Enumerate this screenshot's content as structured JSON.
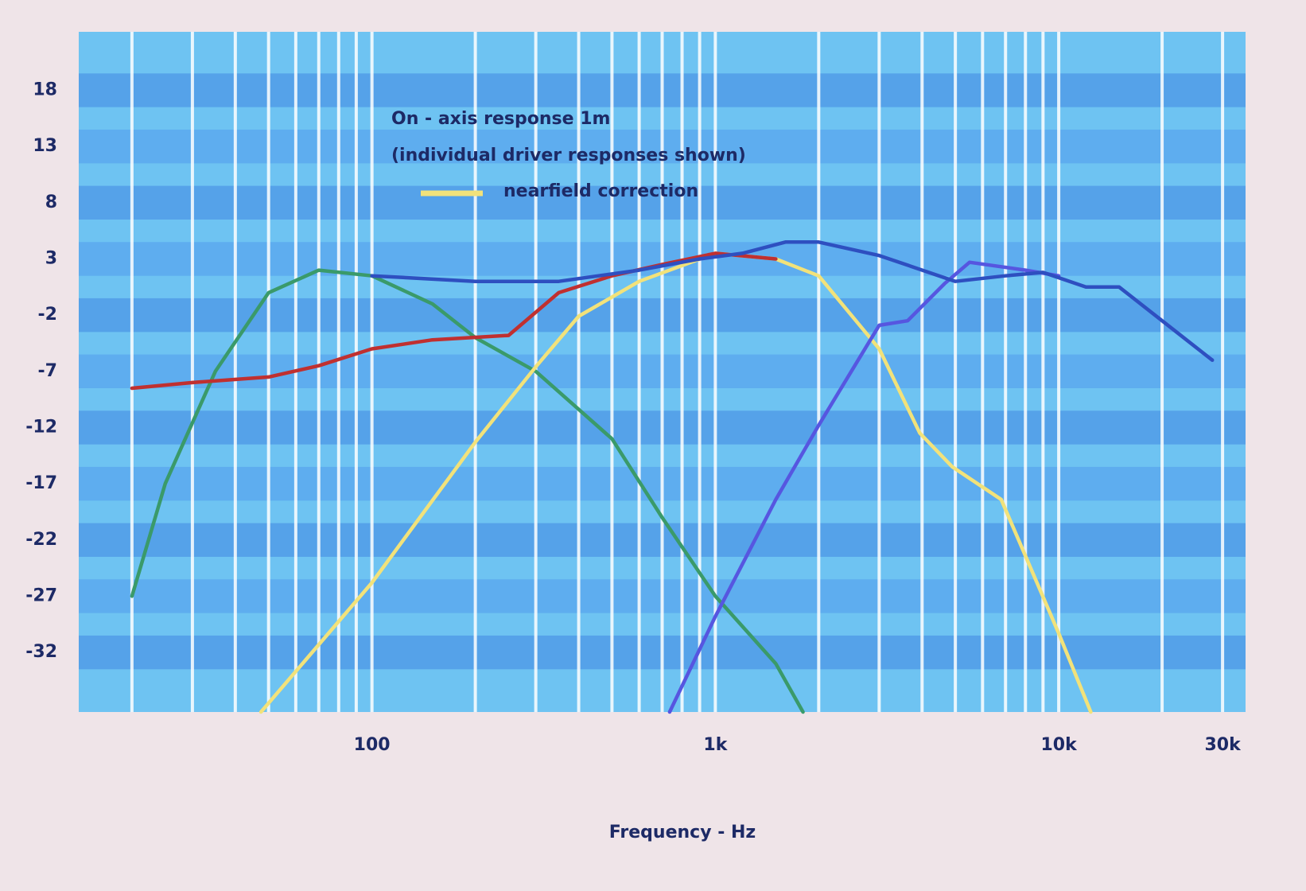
{
  "chart_data": {
    "type": "line",
    "annotations": [
      "On - axis response 1m",
      "(individual driver responses shown)"
    ],
    "x_label": "Frequency - Hz",
    "log_x": true,
    "xlim": [
      14,
      35000
    ],
    "ylim": [
      -37.3,
      23.2
    ],
    "xticks": [
      100,
      {
        "value": 1000,
        "label": "1k"
      },
      {
        "value": 10000,
        "label": "10k"
      },
      {
        "value": 30000,
        "label": "30k"
      }
    ],
    "xgrid": [
      20,
      30,
      40,
      50,
      60,
      70,
      80,
      90,
      100,
      200,
      300,
      400,
      500,
      600,
      700,
      800,
      900,
      1000,
      2000,
      3000,
      4000,
      5000,
      6000,
      7000,
      8000,
      9000,
      10000,
      20000,
      30000
    ],
    "yticks": [
      18,
      13,
      8,
      3,
      -2,
      -7,
      -12,
      -17,
      -22,
      -27,
      -32
    ],
    "grid": true,
    "series": [
      {
        "color": "#3a9a6a",
        "x": [
          20,
          25,
          35,
          50,
          70,
          100,
          150,
          200,
          300,
          500,
          700,
          1000,
          1500,
          1800
        ],
        "values": [
          -27,
          -17,
          -7,
          0,
          2,
          1.5,
          -1,
          -4,
          -7,
          -13,
          -20,
          -27,
          -33,
          -37.3
        ]
      },
      {
        "name": "nearfield correction",
        "color": "#f2e27a",
        "x": [
          47.5,
          100,
          200,
          300,
          400,
          600,
          1000,
          1500,
          2000,
          3000,
          3940,
          4900,
          6800,
          10000,
          12400
        ],
        "values": [
          -37.3,
          -25.8,
          -13.3,
          -6.6,
          -2.1,
          1,
          3.5,
          3,
          1.5,
          -5,
          -12.5,
          -15.5,
          -18.4,
          -30.3,
          -37.3
        ]
      },
      {
        "color": "#c03030",
        "x": [
          20,
          30,
          50,
          70,
          100,
          150,
          250,
          350,
          500,
          700,
          1000,
          1500
        ],
        "values": [
          -8.5,
          -8,
          -7.5,
          -6.5,
          -5,
          -4.2,
          -3.8,
          0,
          1.5,
          2.5,
          3.5,
          3
        ]
      },
      {
        "color": "#5656e0",
        "x": [
          736,
          1000,
          1500,
          2000,
          3000,
          3630,
          4650,
          5500,
          8000,
          10000
        ],
        "values": [
          -37.3,
          -28.8,
          -18.4,
          -11.8,
          -2.9,
          -2.5,
          0.8,
          2.7,
          2,
          1.5
        ]
      },
      {
        "color": "#2e4fc0",
        "x": [
          100,
          200,
          350,
          600,
          900,
          1200,
          1600,
          2000,
          3000,
          5000,
          7000,
          9000,
          12000,
          15000,
          20000,
          28000
        ],
        "values": [
          1.5,
          1,
          1,
          2,
          3,
          3.5,
          4.5,
          4.5,
          3.3,
          1,
          1.5,
          1.8,
          0.5,
          0.5,
          -2.5,
          -6
        ]
      }
    ]
  }
}
